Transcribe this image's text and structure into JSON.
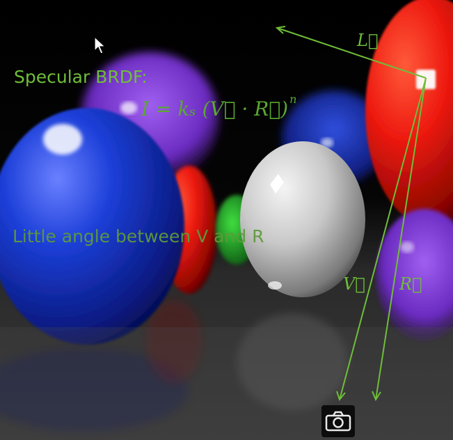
{
  "slide": {
    "heading": "Specular BRDF:",
    "formula": {
      "main": "I = kₛ (V⃗ · R⃗)",
      "exponent": "n"
    },
    "caption": "Little angle between V and R"
  },
  "vectors": {
    "L": "L⃗",
    "V": "V⃗",
    "R": "R⃗"
  },
  "colors": {
    "annotation": "#6fbe3a",
    "background": "#000000"
  },
  "icons": {
    "cursor": "arrow-cursor-icon",
    "camera": "camera-icon"
  }
}
